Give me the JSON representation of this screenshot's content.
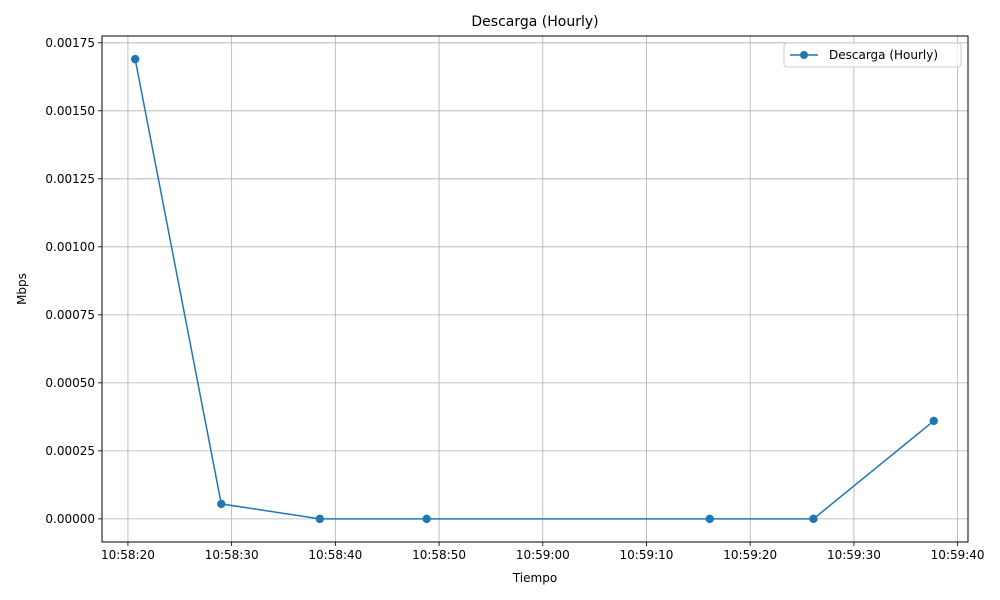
{
  "chart_data": {
    "type": "line",
    "title": "Descarga (Hourly)",
    "xlabel": "Tiempo",
    "ylabel": "Mbps",
    "xlim": [
      "10:58:17.5",
      "10:59:41"
    ],
    "ylim": [
      -8.5e-05,
      0.001775
    ],
    "x_ticks": [
      "10:58:20",
      "10:58:30",
      "10:58:40",
      "10:58:50",
      "10:59:00",
      "10:59:10",
      "10:59:20",
      "10:59:30",
      "10:59:40"
    ],
    "y_ticks": [
      "0.00000",
      "0.00025",
      "0.00050",
      "0.00075",
      "0.00100",
      "0.00125",
      "0.00150",
      "0.00175"
    ],
    "grid": true,
    "legend_position": "upper-right",
    "series": [
      {
        "name": "Descarga (Hourly)",
        "color": "#1f77b4",
        "marker": "circle",
        "x": [
          "10:58:20.7",
          "10:58:29",
          "10:58:38.5",
          "10:58:48.8",
          "10:59:16.1",
          "10:59:26.1",
          "10:59:37.7"
        ],
        "y": [
          0.00169,
          5.5e-05,
          0.0,
          0.0,
          0.0,
          0.0,
          0.00036
        ]
      }
    ]
  }
}
